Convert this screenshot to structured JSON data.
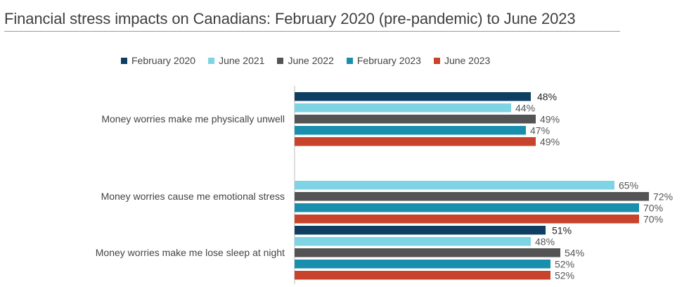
{
  "chart_data": {
    "type": "bar",
    "orientation": "horizontal",
    "title": "Financial stress impacts on Canadians: February 2020 (pre-pandemic) to June 2023",
    "categories": [
      "Money worries make me physically unwell",
      "Money worries cause me emotional stress",
      "Money worries make me lose sleep at night"
    ],
    "series": [
      {
        "name": "February 2020",
        "color": "#0e3f63",
        "values": [
          48,
          null,
          51
        ]
      },
      {
        "name": "June 2021",
        "color": "#7fd4e3",
        "values": [
          44,
          65,
          48
        ]
      },
      {
        "name": "June 2022",
        "color": "#545454",
        "values": [
          49,
          72,
          54
        ]
      },
      {
        "name": "February 2023",
        "color": "#1a8fad",
        "values": [
          47,
          70,
          52
        ]
      },
      {
        "name": "June 2023",
        "color": "#c8432b",
        "values": [
          49,
          70,
          52
        ]
      }
    ],
    "value_suffix": "%",
    "xlim": [
      0,
      72
    ],
    "legend_position": "top",
    "grid": false
  }
}
